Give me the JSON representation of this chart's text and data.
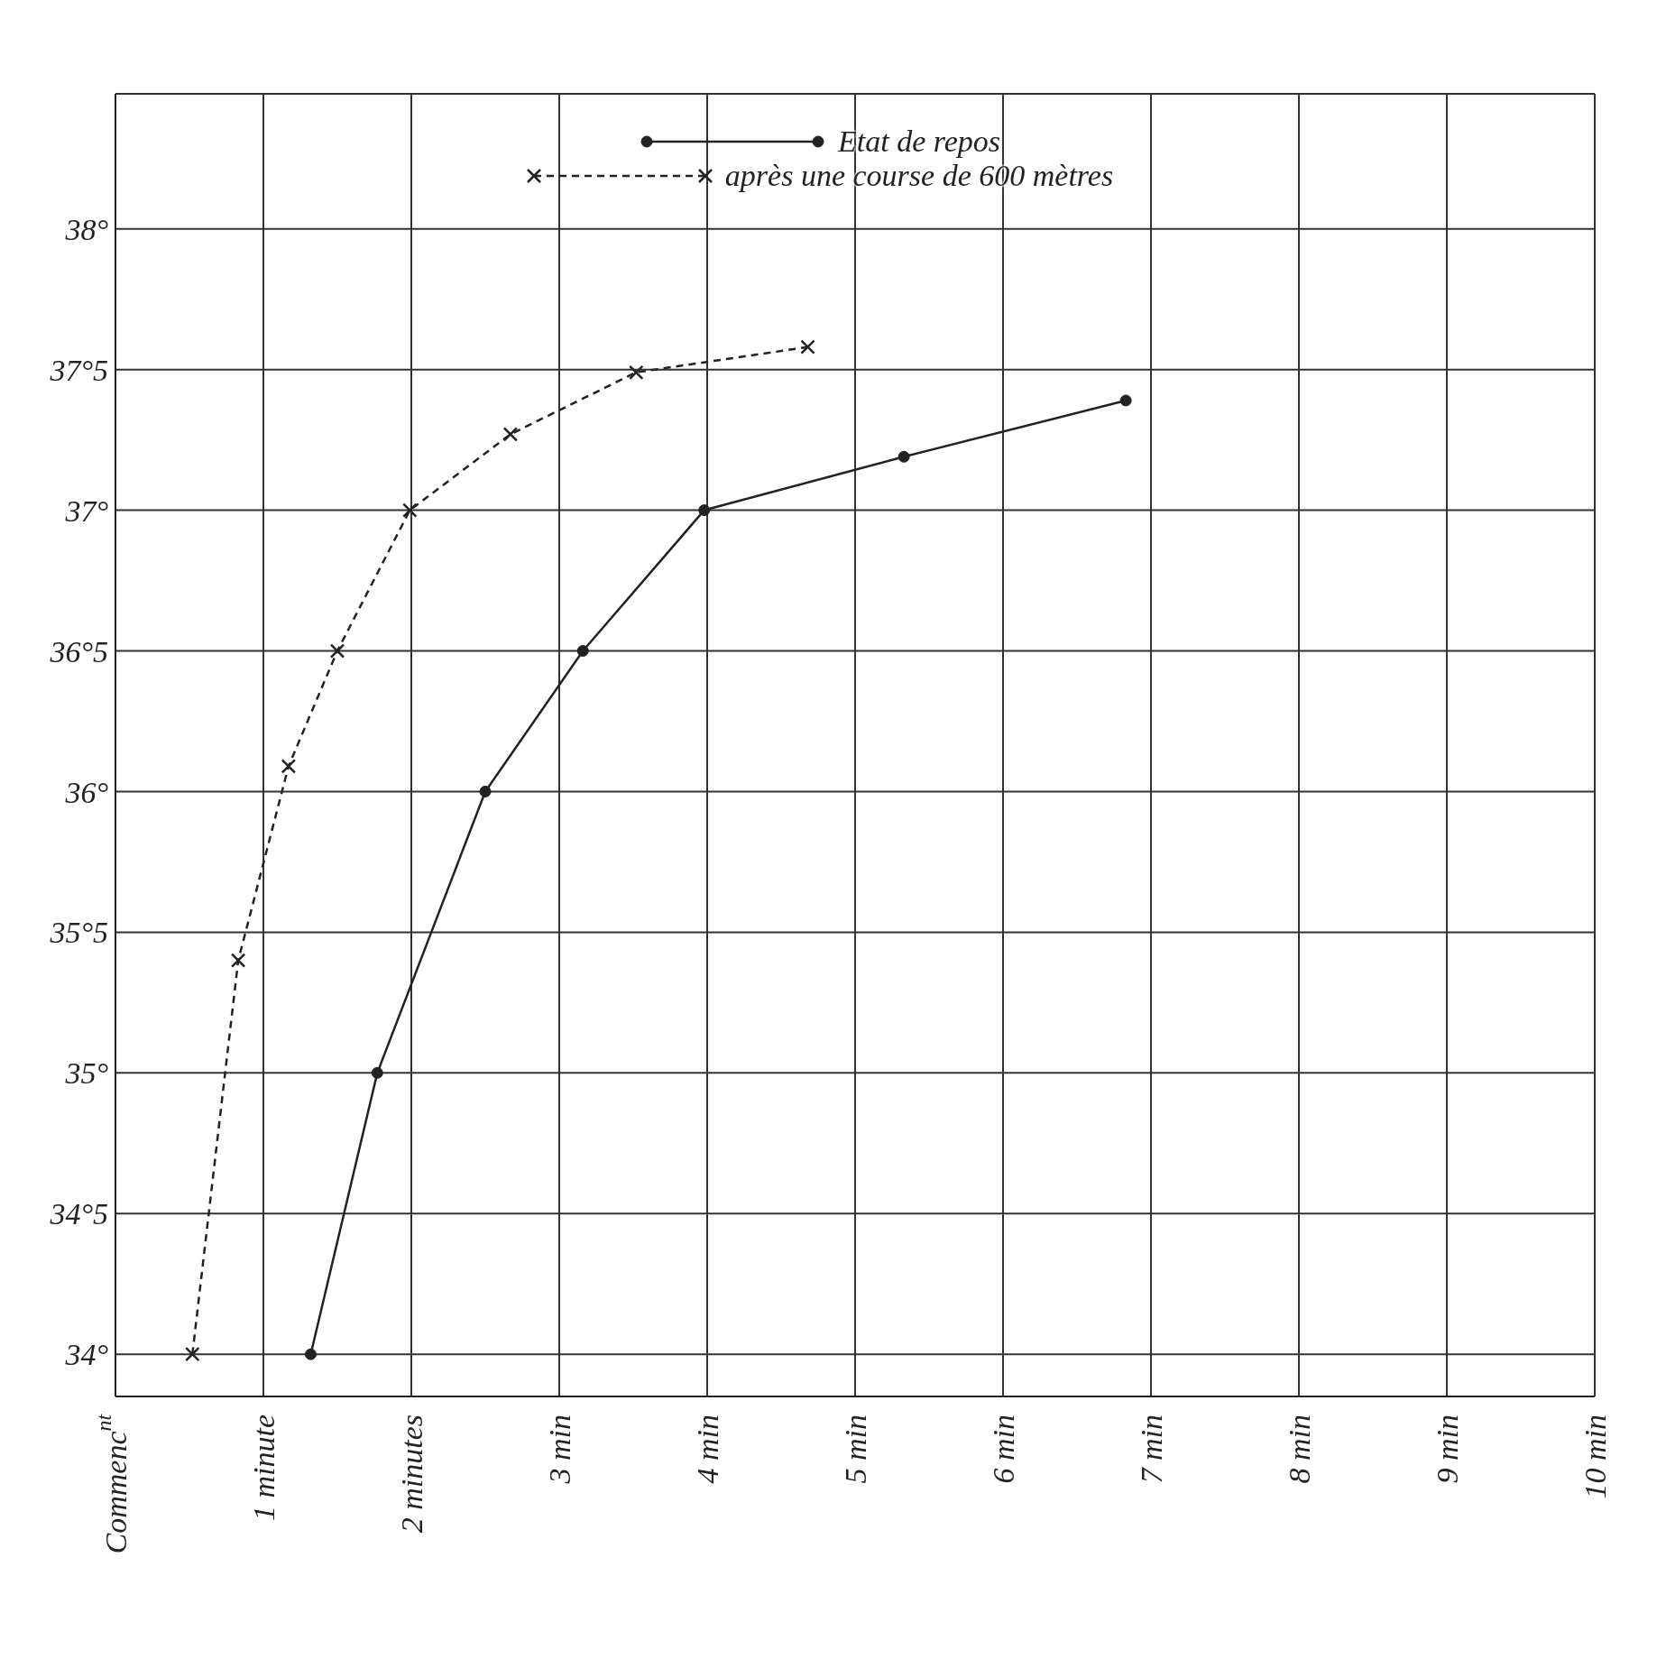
{
  "chart_data": {
    "type": "line",
    "xlim": [
      0,
      10
    ],
    "ylim": [
      33.85,
      38.48
    ],
    "xticks": [
      {
        "value": 0,
        "label": "Commenc$^{nt}$"
      },
      {
        "value": 1,
        "label": "1 minute"
      },
      {
        "value": 2,
        "label": "2 minutes"
      },
      {
        "value": 3,
        "label": "3 min"
      },
      {
        "value": 4,
        "label": "4 min"
      },
      {
        "value": 5,
        "label": "5 min"
      },
      {
        "value": 6,
        "label": "6 min"
      },
      {
        "value": 7,
        "label": "7 min"
      },
      {
        "value": 8,
        "label": "8 min"
      },
      {
        "value": 9,
        "label": "9 min"
      },
      {
        "value": 10,
        "label": "10 min"
      }
    ],
    "yticks": [
      {
        "value": 34,
        "label": "34°"
      },
      {
        "value": 34.5,
        "label": "34°5"
      },
      {
        "value": 35,
        "label": "35°"
      },
      {
        "value": 35.5,
        "label": "35°5"
      },
      {
        "value": 36,
        "label": "36°"
      },
      {
        "value": 36.5,
        "label": "36°5"
      },
      {
        "value": 37,
        "label": "37°"
      },
      {
        "value": 37.5,
        "label": "37°5"
      },
      {
        "value": 38,
        "label": "38°"
      }
    ],
    "grid": true,
    "legend": "top",
    "series": [
      {
        "name": "Etat de repos",
        "color": "#222222",
        "marker": "circle",
        "line_style": "solid",
        "x": [
          1.32,
          1.77,
          2.5,
          3.16,
          3.98,
          5.33,
          6.83
        ],
        "values": [
          34.0,
          35.0,
          36.0,
          36.5,
          37.0,
          37.19,
          37.39
        ]
      },
      {
        "name": "après une course de 600 mètres",
        "color": "#222222",
        "marker": "cross",
        "line_style": "dashed",
        "x": [
          0.52,
          0.83,
          1.17,
          1.5,
          1.99,
          2.67,
          3.52,
          4.68
        ],
        "values": [
          34.0,
          35.4,
          36.09,
          36.5,
          37.0,
          37.27,
          37.49,
          37.58
        ]
      }
    ]
  }
}
